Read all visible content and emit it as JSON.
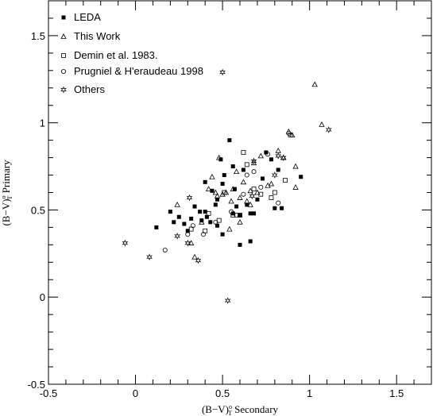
{
  "chart_data": {
    "type": "scatter",
    "title": "",
    "xlabel": "(B−V)°T Secondary",
    "ylabel": "(B−V)°T Primary",
    "xlabel_main": "(B−V)",
    "xlabel_sup": "o",
    "xlabel_sub": "T",
    "xlabel_tail": " Secondary",
    "ylabel_main": "(B−V)",
    "ylabel_sup": "o",
    "ylabel_sub": "T",
    "ylabel_tail": " Primary",
    "xlim": [
      -0.5,
      1.7
    ],
    "ylim": [
      -0.5,
      1.7
    ],
    "xticks": [
      -0.5,
      0,
      0.5,
      1,
      1.5
    ],
    "yticks": [
      -0.5,
      0,
      0.5,
      1,
      1.5
    ],
    "xtick_labels": [
      "-0.5",
      "0",
      "0.5",
      "1",
      "1.5"
    ],
    "ytick_labels": [
      "-0.5",
      "0",
      "0.5",
      "1",
      "1.5"
    ],
    "x_minor_step": 0.1,
    "y_minor_step": 0.1,
    "grid": false,
    "legend_position": "top-left",
    "series": [
      {
        "name": "LEDA",
        "marker": "filled-square",
        "points": [
          [
            0.12,
            0.4
          ],
          [
            0.2,
            0.49
          ],
          [
            0.22,
            0.43
          ],
          [
            0.25,
            0.46
          ],
          [
            0.28,
            0.42
          ],
          [
            0.3,
            0.38
          ],
          [
            0.32,
            0.45
          ],
          [
            0.34,
            0.52
          ],
          [
            0.37,
            0.49
          ],
          [
            0.38,
            0.44
          ],
          [
            0.4,
            0.49
          ],
          [
            0.4,
            0.66
          ],
          [
            0.41,
            0.46
          ],
          [
            0.43,
            0.43
          ],
          [
            0.44,
            0.61
          ],
          [
            0.46,
            0.53
          ],
          [
            0.47,
            0.56
          ],
          [
            0.49,
            0.79
          ],
          [
            0.5,
            0.65
          ],
          [
            0.51,
            0.7
          ],
          [
            0.54,
            0.9
          ],
          [
            0.56,
            0.75
          ],
          [
            0.56,
            0.48
          ],
          [
            0.57,
            0.62
          ],
          [
            0.58,
            0.52
          ],
          [
            0.6,
            0.47
          ],
          [
            0.62,
            0.73
          ],
          [
            0.64,
            0.53
          ],
          [
            0.66,
            0.48
          ],
          [
            0.68,
            0.48
          ],
          [
            0.7,
            0.56
          ],
          [
            0.73,
            0.68
          ],
          [
            0.75,
            0.83
          ],
          [
            0.78,
            0.79
          ],
          [
            0.8,
            0.51
          ],
          [
            0.82,
            0.73
          ],
          [
            0.84,
            0.51
          ],
          [
            0.95,
            0.69
          ],
          [
            0.5,
            0.36
          ],
          [
            0.6,
            0.3
          ],
          [
            0.66,
            0.32
          ],
          [
            0.47,
            0.41
          ]
        ]
      },
      {
        "name": "This Work",
        "marker": "open-triangle",
        "points": [
          [
            0.24,
            0.53
          ],
          [
            0.32,
            0.31
          ],
          [
            0.34,
            0.23
          ],
          [
            0.38,
            0.43
          ],
          [
            0.42,
            0.62
          ],
          [
            0.44,
            0.69
          ],
          [
            0.46,
            0.6
          ],
          [
            0.47,
            0.58
          ],
          [
            0.48,
            0.8
          ],
          [
            0.5,
            0.59
          ],
          [
            0.52,
            0.6
          ],
          [
            0.54,
            0.39
          ],
          [
            0.55,
            0.55
          ],
          [
            0.56,
            0.62
          ],
          [
            0.58,
            0.72
          ],
          [
            0.6,
            0.57
          ],
          [
            0.6,
            0.43
          ],
          [
            0.62,
            0.66
          ],
          [
            0.64,
            0.55
          ],
          [
            0.66,
            0.61
          ],
          [
            0.66,
            0.53
          ],
          [
            0.68,
            0.77
          ],
          [
            0.7,
            0.6
          ],
          [
            0.72,
            0.81
          ],
          [
            0.76,
            0.64
          ],
          [
            0.78,
            0.65
          ],
          [
            0.82,
            0.84
          ],
          [
            0.85,
            0.8
          ],
          [
            0.88,
            0.95
          ],
          [
            0.9,
            0.93
          ],
          [
            0.92,
            0.75
          ],
          [
            0.92,
            0.63
          ],
          [
            1.03,
            1.22
          ],
          [
            1.07,
            0.99
          ]
        ]
      },
      {
        "name": "Demin et al. 1983.",
        "marker": "open-square",
        "points": [
          [
            0.32,
            0.39
          ],
          [
            0.4,
            0.38
          ],
          [
            0.42,
            0.48
          ],
          [
            0.48,
            0.44
          ],
          [
            0.51,
            0.6
          ],
          [
            0.56,
            0.47
          ],
          [
            0.6,
            0.47
          ],
          [
            0.62,
            0.83
          ],
          [
            0.64,
            0.76
          ],
          [
            0.68,
            0.62
          ],
          [
            0.72,
            0.59
          ],
          [
            0.78,
            0.57
          ],
          [
            0.8,
            0.6
          ],
          [
            0.86,
            0.67
          ],
          [
            0.89,
            0.93
          ]
        ]
      },
      {
        "name": "Prugniel & H'eraudeau 1998",
        "marker": "open-circle",
        "points": [
          [
            0.17,
            0.27
          ],
          [
            0.3,
            0.36
          ],
          [
            0.33,
            0.41
          ],
          [
            0.39,
            0.36
          ],
          [
            0.46,
            0.43
          ],
          [
            0.55,
            0.49
          ],
          [
            0.58,
            0.47
          ],
          [
            0.62,
            0.59
          ],
          [
            0.64,
            0.7
          ],
          [
            0.68,
            0.72
          ],
          [
            0.72,
            0.63
          ],
          [
            0.76,
            0.82
          ],
          [
            0.82,
            0.54
          ],
          [
            0.88,
            0.94
          ]
        ]
      },
      {
        "name": "Others",
        "marker": "star",
        "points": [
          [
            -0.06,
            0.31
          ],
          [
            0.08,
            0.23
          ],
          [
            0.24,
            0.35
          ],
          [
            0.3,
            0.31
          ],
          [
            0.31,
            0.57
          ],
          [
            0.36,
            0.21
          ],
          [
            0.5,
            1.29
          ],
          [
            0.53,
            -0.02
          ],
          [
            0.67,
            0.58
          ],
          [
            0.68,
            0.78
          ],
          [
            0.8,
            0.7
          ],
          [
            0.82,
            0.81
          ],
          [
            0.85,
            0.8
          ],
          [
            1.11,
            0.96
          ]
        ]
      }
    ]
  }
}
